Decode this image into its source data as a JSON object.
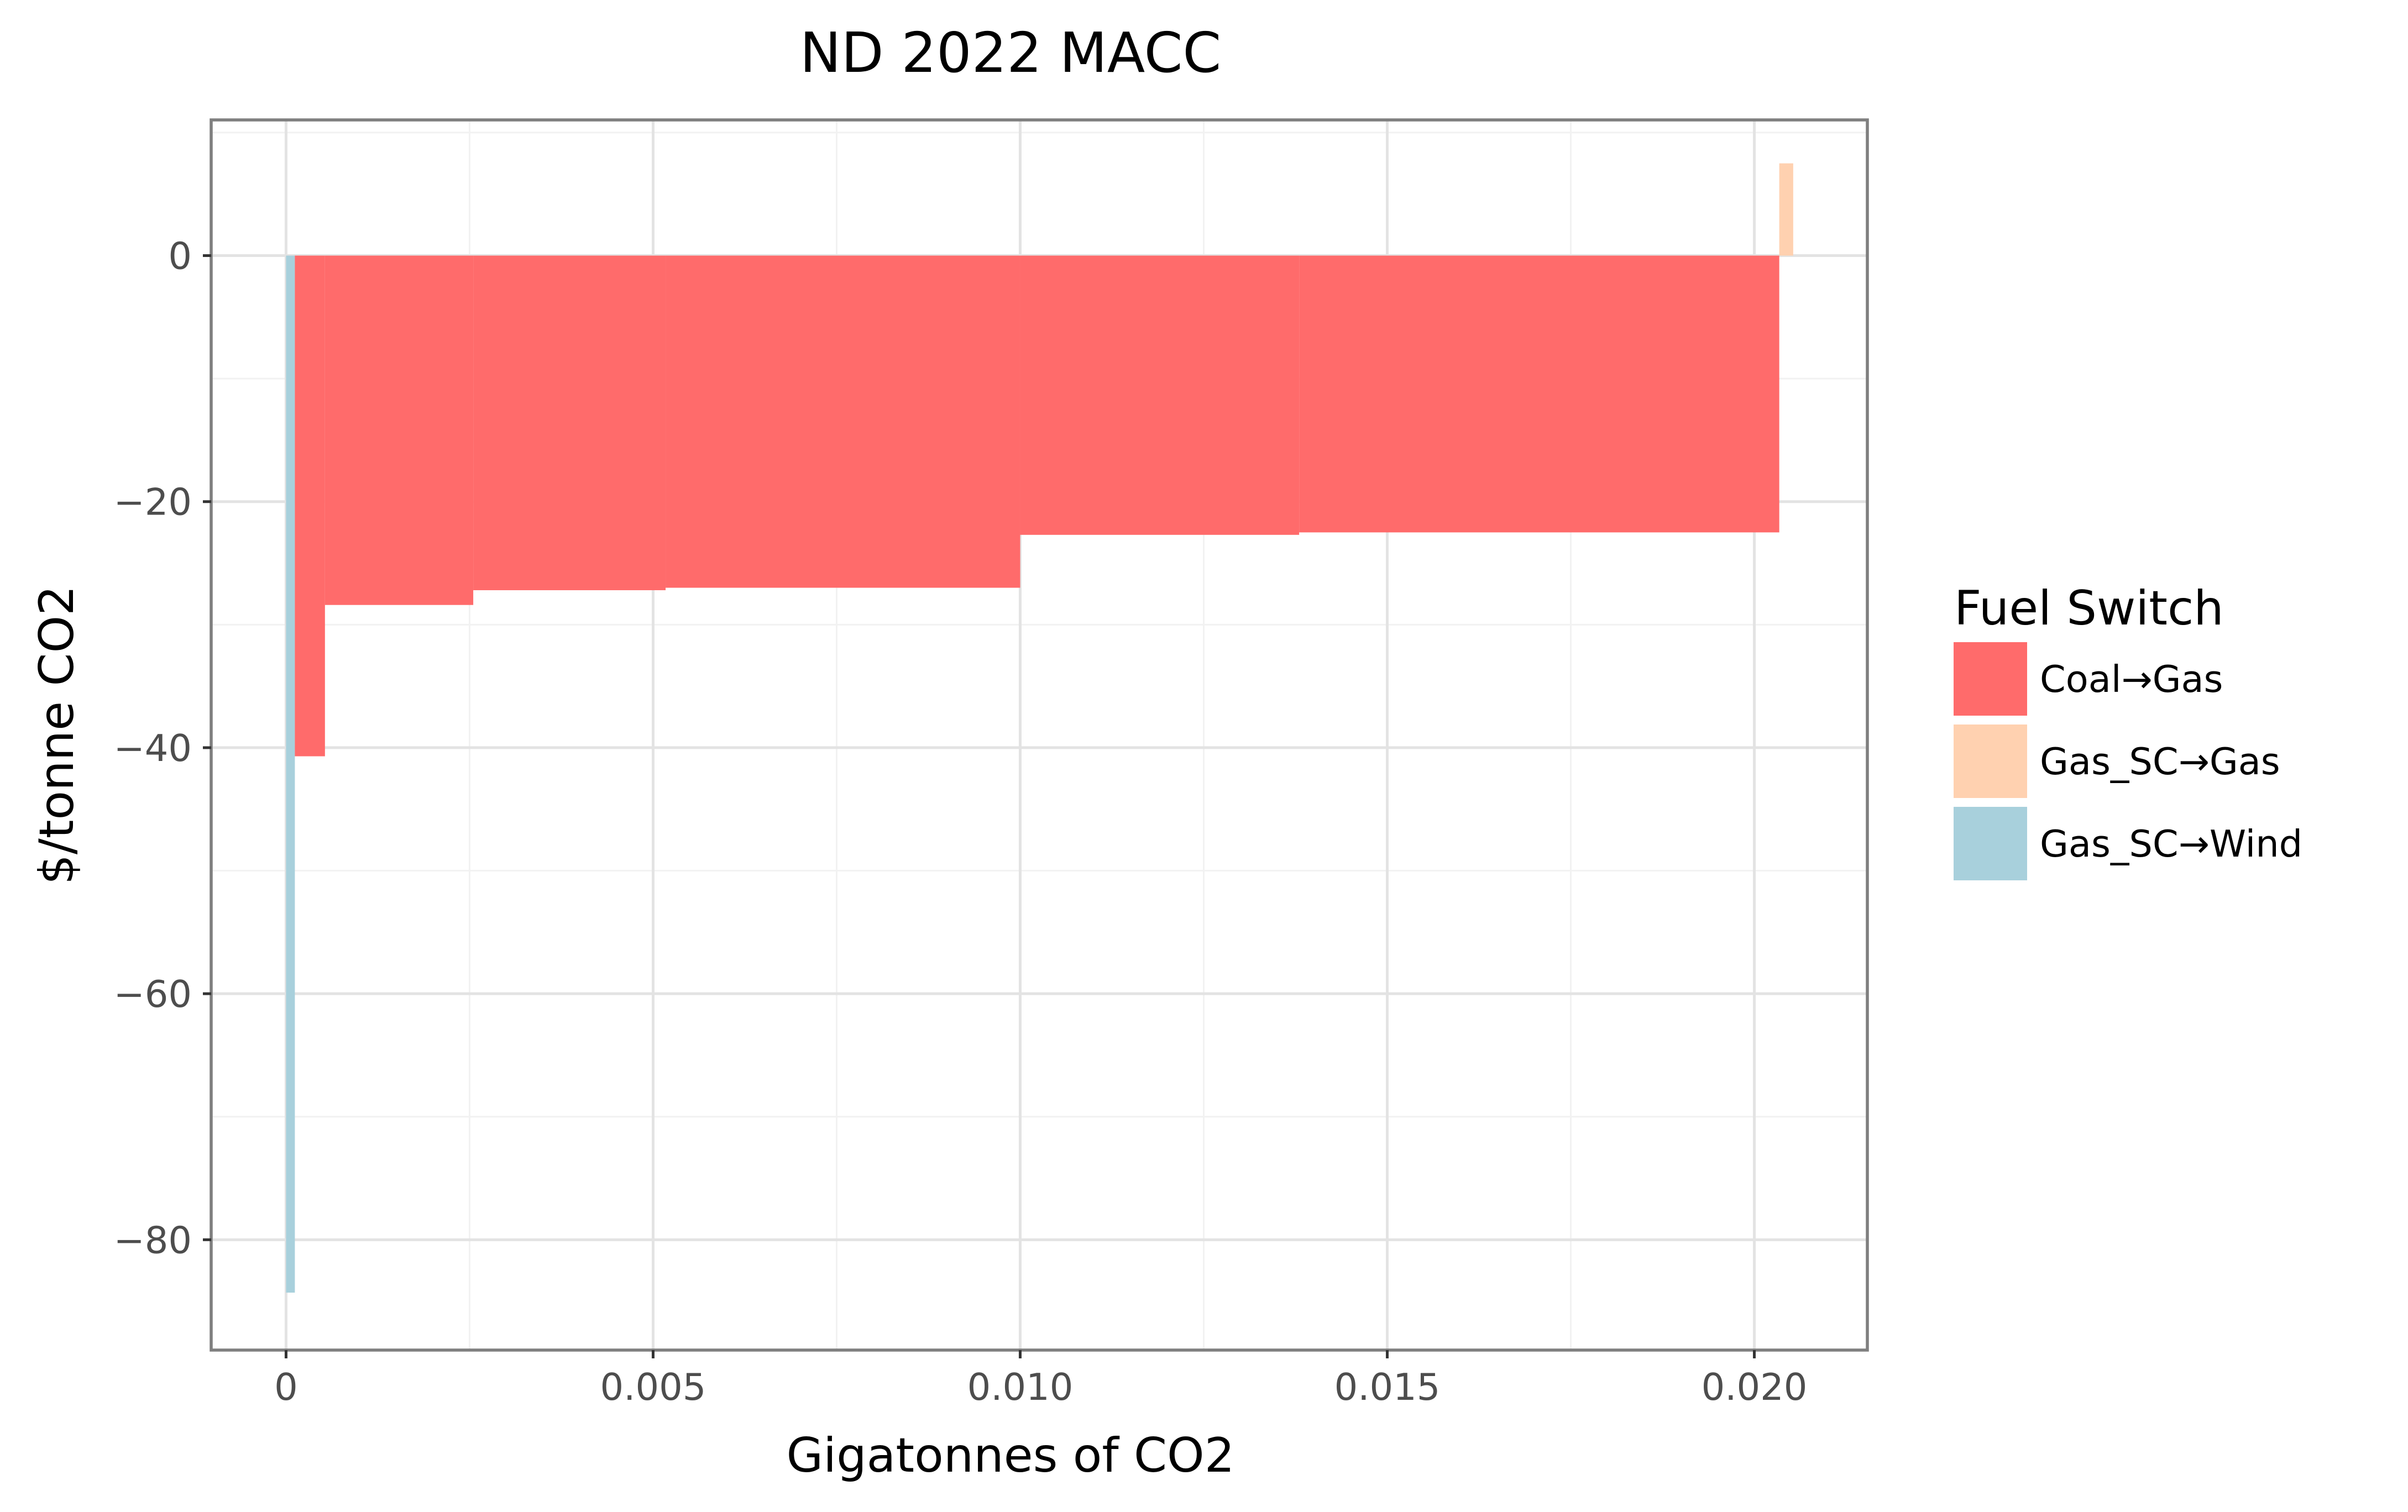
{
  "chart_data": {
    "type": "bar",
    "title": "ND 2022 MACC",
    "xlabel": "Gigatonnes of CO2",
    "ylabel": "$/tonne CO2",
    "xlim": [
      -0.00102,
      0.02154
    ],
    "ylim": [
      -88.97,
      11.03
    ],
    "xticks": [
      0,
      0.005,
      0.01,
      0.015,
      0.02
    ],
    "xtick_labels": [
      "0",
      "0.005",
      "0.010",
      "0.015",
      "0.020"
    ],
    "yticks": [
      0,
      -20,
      -40,
      -60,
      -80
    ],
    "ytick_labels": [
      "0",
      "−20",
      "−40",
      "−60",
      "−80"
    ],
    "grid": true,
    "legend": {
      "title": "Fuel Switch",
      "position": "right",
      "entries": [
        {
          "label": "Coal→Gas",
          "color": "#ff6b6b"
        },
        {
          "label": "Gas_SC→Gas",
          "color": "#ffd1b0"
        },
        {
          "label": "Gas_SC→Wind",
          "color": "#a8d0dc"
        }
      ]
    },
    "series": [
      {
        "name": "Gas_SC→Wind",
        "color": "#a8d0dc",
        "bars": [
          {
            "x0": 0.0,
            "x1": 0.00012,
            "y": -84.3
          }
        ]
      },
      {
        "name": "Coal→Gas",
        "color": "#ff6b6b",
        "bars": [
          {
            "x0": 0.00012,
            "x1": 0.00053,
            "y": -40.7
          },
          {
            "x0": 0.00053,
            "x1": 0.00255,
            "y": -28.4
          },
          {
            "x0": 0.00255,
            "x1": 0.00517,
            "y": -27.2
          },
          {
            "x0": 0.00517,
            "x1": 0.01,
            "y": -27.0
          },
          {
            "x0": 0.01,
            "x1": 0.0138,
            "y": -22.7
          },
          {
            "x0": 0.0138,
            "x1": 0.02034,
            "y": -22.5
          }
        ]
      },
      {
        "name": "Gas_SC→Gas",
        "color": "#ffd1b0",
        "bars": [
          {
            "x0": 0.02034,
            "x1": 0.02053,
            "y": 7.5
          }
        ]
      }
    ]
  }
}
